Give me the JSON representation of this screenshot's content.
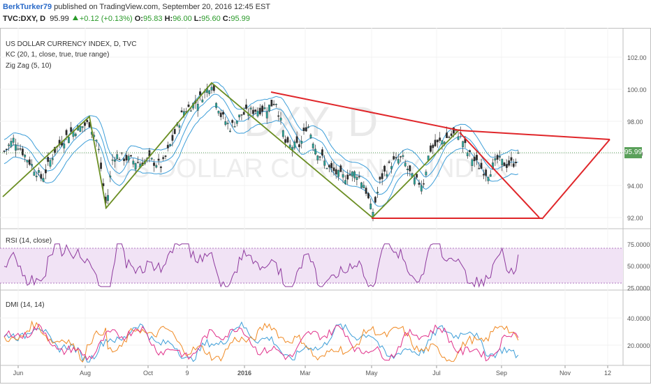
{
  "header": {
    "author": "BerkTurker79",
    "published": "published on TradingView.com, September 20, 2016 12:45 EST",
    "symbol": "TVC:DXY, D",
    "last": "95.99",
    "change": "+0.12 (+0.13%)",
    "open_label": "O:",
    "open": "95.83",
    "high_label": "H:",
    "high": "96.00",
    "low_label": "L:",
    "low": "95.60",
    "close_label": "C:",
    "close": "95.99"
  },
  "watermark": {
    "symbol": "DXY, D",
    "name": "US DOLLAR CURRENCY INDEX"
  },
  "price_panel": {
    "title": "US DOLLAR CURRENCY INDEX, D, TVC",
    "ind1": "KC (20, 1, close, true, true range)",
    "ind2": "Zig Zag (5, 10)",
    "last_badge": "95.99"
  },
  "rsi_panel": {
    "title": "RSI (14, close)"
  },
  "dmi_panel": {
    "title": "DMI (14, 14)"
  },
  "colors": {
    "candle_up": "#26a69a",
    "candle_down": "#2b2b2b",
    "keltner": "#3d9ed8",
    "zigzag": "#6b8e23",
    "trendline": "#e0262a",
    "rsi": "#8e3a9e",
    "rsi_band": "#f1e3f5",
    "dmi_plus": "#3d9ed8",
    "dmi_minus": "#f08a24",
    "adx": "#e0308a",
    "last_price": "#5aa05a"
  },
  "chart_data": [
    {
      "type": "candlestick",
      "title": "US DOLLAR CURRENCY INDEX, D, TVC",
      "x_ticks": [
        "Jun",
        "Aug",
        "Oct",
        "9",
        "2016",
        "Mar",
        "May",
        "Jul",
        "Sep",
        "Nov",
        "12"
      ],
      "y_ticks": [
        "102.00",
        "100.00",
        "98.00",
        "96.00",
        "94.00",
        "92.00"
      ],
      "ylim": [
        91.5,
        103
      ],
      "last_price": 95.99,
      "approx_closes": [
        {
          "x": "Jun",
          "y": 95.5
        },
        {
          "x": "Aug",
          "y": 97.0
        },
        {
          "x": "Aug",
          "y": 92.7
        },
        {
          "x": "Oct",
          "y": 95.2
        },
        {
          "x": "9",
          "y": 100.4
        },
        {
          "x": "2016",
          "y": 98.0
        },
        {
          "x": "2016",
          "y": 99.8
        },
        {
          "x": "Mar",
          "y": 95.5
        },
        {
          "x": "May",
          "y": 92.0
        },
        {
          "x": "May",
          "y": 94.5
        },
        {
          "x": "Jul",
          "y": 97.3
        },
        {
          "x": "Sep",
          "y": 95.99
        }
      ]
    },
    {
      "type": "line",
      "title": "RSI (14, close)",
      "y_ticks": [
        "75.0000",
        "50.0000",
        "25.0000"
      ],
      "ylim": [
        20,
        80
      ],
      "band": [
        30,
        70
      ]
    },
    {
      "type": "line",
      "title": "DMI (14, 14)",
      "y_ticks": [
        "40.0000",
        "20.0000"
      ],
      "ylim": [
        0,
        50
      ]
    }
  ]
}
